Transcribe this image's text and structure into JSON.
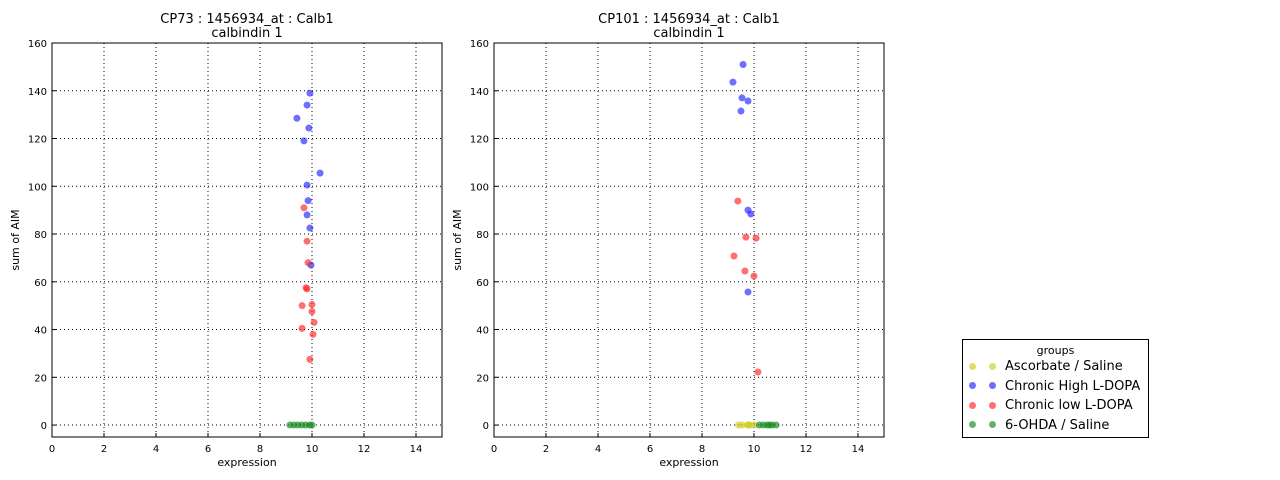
{
  "chart_data": [
    {
      "type": "scatter",
      "title": "CP73 : 1456934_at : Calb1",
      "subtitle": "calbindin 1",
      "xlabel": "expression",
      "ylabel": "sum of AIM",
      "xlim": [
        0,
        15
      ],
      "ylim": [
        -5,
        160
      ],
      "xticks": [
        0,
        2,
        4,
        6,
        8,
        10,
        12,
        14
      ],
      "yticks": [
        0,
        20,
        40,
        60,
        80,
        100,
        120,
        140,
        160
      ],
      "grid": true,
      "series": [
        {
          "name": "Ascorbate / Saline",
          "color": "#cccc22",
          "points": []
        },
        {
          "name": "Chronic High L-DOPA",
          "color": "#2222ff",
          "points": [
            [
              9.92,
              139
            ],
            [
              9.81,
              134
            ],
            [
              9.42,
              128.5
            ],
            [
              9.88,
              124.4
            ],
            [
              9.69,
              119
            ],
            [
              10.31,
              105.5
            ],
            [
              9.81,
              100.5
            ],
            [
              9.85,
              94
            ],
            [
              9.81,
              88
            ],
            [
              9.92,
              82.5
            ],
            [
              9.96,
              67
            ]
          ]
        },
        {
          "name": "Chronic low L-DOPA",
          "color": "#ff2222",
          "points": [
            [
              9.69,
              91
            ],
            [
              9.81,
              77
            ],
            [
              9.85,
              68
            ],
            [
              9.77,
              57.5
            ],
            [
              9.81,
              57
            ],
            [
              9.62,
              50
            ],
            [
              10,
              50.5
            ],
            [
              10,
              47.5
            ],
            [
              10.08,
              43
            ],
            [
              9.62,
              40.5
            ],
            [
              10.04,
              38
            ],
            [
              9.92,
              27.5
            ]
          ]
        },
        {
          "name": "6-OHDA / Saline",
          "color": "#11881a",
          "points": [
            [
              9.15,
              0
            ],
            [
              9.3,
              0
            ],
            [
              9.45,
              0
            ],
            [
              9.6,
              0
            ],
            [
              9.75,
              0
            ],
            [
              9.9,
              0
            ],
            [
              10.0,
              0
            ]
          ]
        }
      ]
    },
    {
      "type": "scatter",
      "title": "CP101 : 1456934_at : Calb1",
      "subtitle": "calbindin 1",
      "xlabel": "expression",
      "ylabel": "sum of AIM",
      "xlim": [
        0,
        15
      ],
      "ylim": [
        -5,
        160
      ],
      "xticks": [
        0,
        2,
        4,
        6,
        8,
        10,
        12,
        14
      ],
      "yticks": [
        0,
        20,
        40,
        60,
        80,
        100,
        120,
        140,
        160
      ],
      "grid": true,
      "series": [
        {
          "name": "Ascorbate / Saline",
          "color": "#cccc22",
          "points": [
            [
              9.4,
              0
            ],
            [
              9.55,
              0
            ],
            [
              9.75,
              0
            ],
            [
              9.8,
              0
            ],
            [
              9.85,
              0
            ],
            [
              10.0,
              0
            ]
          ]
        },
        {
          "name": "Chronic High L-DOPA",
          "color": "#2222ff",
          "points": [
            [
              9.58,
              151
            ],
            [
              9.19,
              143.6
            ],
            [
              9.54,
              137
            ],
            [
              9.77,
              135.7
            ],
            [
              9.5,
              131.5
            ],
            [
              9.77,
              90
            ],
            [
              9.88,
              88.4
            ],
            [
              9.77,
              55.7
            ]
          ]
        },
        {
          "name": "Chronic low L-DOPA",
          "color": "#ff2222",
          "points": [
            [
              9.38,
              93.8
            ],
            [
              9.69,
              78.7
            ],
            [
              10.08,
              78.3
            ],
            [
              9.23,
              70.8
            ],
            [
              9.65,
              64.5
            ],
            [
              10,
              62.4
            ],
            [
              10.15,
              22.2
            ]
          ]
        },
        {
          "name": "6-OHDA / Saline",
          "color": "#11881a",
          "points": [
            [
              10.2,
              0
            ],
            [
              10.35,
              0
            ],
            [
              10.5,
              0
            ],
            [
              10.6,
              0
            ],
            [
              10.7,
              0
            ],
            [
              10.85,
              0
            ]
          ]
        }
      ]
    }
  ],
  "legend": {
    "title": "groups",
    "items": [
      "Ascorbate / Saline",
      "Chronic High L-DOPA",
      "Chronic low L-DOPA",
      "6-OHDA / Saline"
    ],
    "colors": [
      "#cccc22",
      "#2222ff",
      "#ff2222",
      "#11881a"
    ],
    "placement": "right"
  }
}
